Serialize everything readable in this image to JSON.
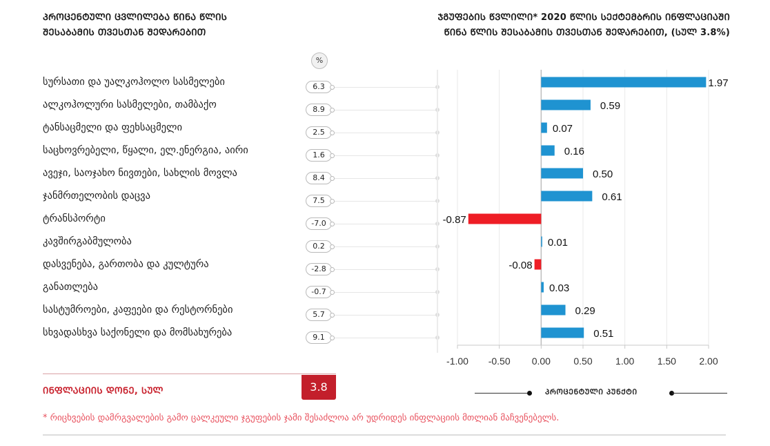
{
  "header": {
    "left_title_line1": "ᲞᲠᲝᲪᲔᲜᲢᲣᲚᲘ ᲪᲕᲚᲘᲚᲔᲑᲐ ᲬᲘᲜᲐ ᲬᲚᲘᲡ",
    "left_title_line2": "ᲨᲔᲡᲐᲑᲐᲛᲘᲡ ᲗᲕᲔᲡᲗᲐᲜ ᲨᲔᲓᲐᲠᲔᲑᲘᲗ",
    "right_title_line1": "ᲯᲒᲣᲤᲔᲑᲘᲡ ᲬᲕᲚᲘᲚᲘ* 2020 ᲬᲚᲘᲡ ᲡᲔᲥᲢᲔᲛᲑᲠᲘᲡ ᲘᲜᲤᲚᲐᲪᲘᲐᲨᲘ",
    "right_title_line2": "ᲬᲘᲜᲐ ᲬᲚᲘᲡ ᲨᲔᲡᲐᲑᲐᲛᲘᲡ ᲗᲕᲔᲡᲗᲐᲜ ᲨᲔᲓᲐᲠᲔᲑᲘᲗ, (ᲡᲣᲚ 3.8%)",
    "percent_badge": "%"
  },
  "rows": [
    {
      "label": "სურსათი და უალკოჰოლო სასმელები",
      "yoy_change": "6.3"
    },
    {
      "label": "ალკოჰოლური სასმელები, თამბაქო",
      "yoy_change": "8.9"
    },
    {
      "label": "ტანსაცმელი და ფეხსაცმელი",
      "yoy_change": "2.5"
    },
    {
      "label": "საცხოვრებელი, წყალი, ელ.ენერგია, აირი",
      "yoy_change": "1.6"
    },
    {
      "label": "ავეჯი, საოჯახო ნივთები, სახლის მოვლა",
      "yoy_change": "8.4"
    },
    {
      "label": "ჯანმრთელობის დაცვა",
      "yoy_change": "7.5"
    },
    {
      "label": "ტრანსპორტი",
      "yoy_change": "-7.0"
    },
    {
      "label": "კავშირგაბმულობა",
      "yoy_change": "0.2"
    },
    {
      "label": "დასვენება, გართობა და კულტურა",
      "yoy_change": "-2.8"
    },
    {
      "label": "განათლება",
      "yoy_change": "-0.7"
    },
    {
      "label": "სასტუმროები, კაფეები და რესტორნები",
      "yoy_change": "5.7"
    },
    {
      "label": "სხვადასხვა საქონელი და მომსახურება",
      "yoy_change": "9.1"
    }
  ],
  "chart_data": {
    "type": "bar",
    "orientation": "horizontal",
    "title": "ᲯᲒᲣᲤᲔᲑᲘᲡ ᲬᲕᲚᲘᲚᲘ* 2020 ᲬᲚᲘᲡ ᲡᲔᲥᲢᲔᲛᲑᲠᲘᲡ ᲘᲜᲤᲚᲐᲪᲘᲐᲨᲘ ᲬᲘᲜᲐ ᲬᲚᲘᲡ ᲨᲔᲡᲐᲑᲐᲛᲘᲡ ᲗᲕᲔᲡᲗᲐᲜ ᲨᲔᲓᲐᲠᲔᲑᲘᲗ, (ᲡᲣᲚ 3.8%)",
    "categories": [
      "სურსათი და უალკოჰოლო სასმელები",
      "ალკოჰოლური სასმელები, თამბაქო",
      "ტანსაცმელი და ფეხსაცმელი",
      "საცხოვრებელი, წყალი, ელ.ენერგია, აირი",
      "ავეჯი, საოჯახო ნივთები, სახლის მოვლა",
      "ჯანმრთელობის დაცვა",
      "ტრანსპორტი",
      "კავშირგაბმულობა",
      "დასვენება, გართობა და კულტურა",
      "განათლება",
      "სასტუმროები, კაფეები და რესტორნები",
      "სხვადასხვა საქონელი და მომსახურება"
    ],
    "values": [
      1.97,
      0.59,
      0.07,
      0.16,
      0.5,
      0.61,
      -0.87,
      0.01,
      -0.08,
      0.03,
      0.29,
      0.51
    ],
    "value_labels": [
      "1.97",
      "0.59",
      "0.07",
      "0.16",
      "0.50",
      "0.61",
      "-0.87",
      "0.01",
      "-0.08",
      "0.03",
      "0.29",
      "0.51"
    ],
    "xlim": [
      -1.0,
      2.0
    ],
    "xticks": [
      -1.0,
      -0.5,
      0.0,
      0.5,
      1.0,
      1.5,
      2.0
    ],
    "xtick_labels": [
      "-1.00",
      "-0.50",
      "0.00",
      "0.50",
      "1.00",
      "1.50",
      "2.00"
    ],
    "xlabel": "ᲞᲠᲝᲪᲔᲜᲢᲣᲚᲘ ᲞᲣᲜᲥᲢᲘ",
    "grid": "vertical",
    "colors": {
      "positive": "#1f93d1",
      "negative": "#ee1d25"
    }
  },
  "summary": {
    "label": "ᲘᲜᲤᲚᲐᲪᲘᲘᲡ ᲓᲝᲜᲔ, ᲡᲣᲚ",
    "value": "3.8",
    "accent_color": "#c31f2b"
  },
  "legend": {
    "axis_unit_label": "ᲞᲠᲝᲪᲔᲜᲢᲣᲚᲘ ᲞᲣᲜᲥᲢᲘ"
  },
  "footnote": "* რიცხვების დამრგვალების გამო ცალკეული ჯგუფების ჯამი შესაძლოა არ უდრიდეს ინფლაციის მთლიან მაჩვენებელს."
}
